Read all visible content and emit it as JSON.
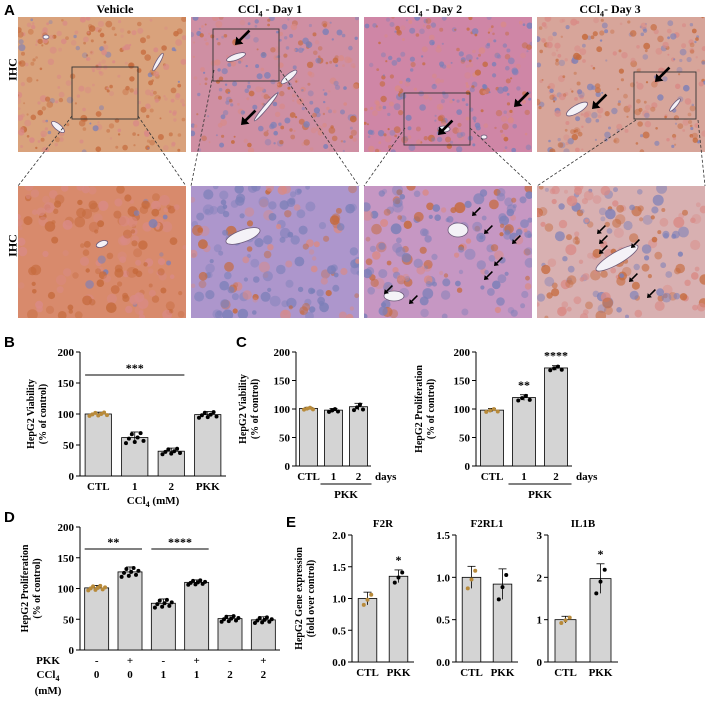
{
  "panels": {
    "A": "A",
    "B": "B",
    "C": "C",
    "D": "D",
    "E": "E"
  },
  "row_label": "IHC",
  "columns": [
    {
      "prefix": "CCl",
      "sub": "",
      "suffix": "Vehicle"
    },
    {
      "prefix": "CCl",
      "sub": "4",
      "suffix": " - Day 1"
    },
    {
      "prefix": "CCl",
      "sub": "4",
      "suffix": " - Day 2"
    },
    {
      "prefix": "CCl",
      "sub": "4",
      "suffix": "- Day 3"
    }
  ],
  "col_titles": [
    "Vehicle",
    "CCl",
    "CCl",
    "CCl"
  ],
  "col_subs": [
    "",
    "4",
    "4",
    "4"
  ],
  "col_suffixes": [
    "",
    " - Day 1",
    " - Day 2",
    "- Day 3"
  ],
  "tissue_colors": {
    "pink": "#d98a86",
    "blue": "#7b7fb8",
    "brown": "#c56a3c"
  },
  "chart_data": [
    {
      "id": "B",
      "type": "bar",
      "ylabel": "HepG2 Viability",
      "ylabel2": "(% of control)",
      "categories": [
        "CTL",
        "1",
        "2",
        "PKK"
      ],
      "values": [
        100,
        62,
        40,
        99
      ],
      "errors": [
        3,
        9,
        5,
        5
      ],
      "ylim": [
        0,
        200
      ],
      "yticks": [
        "0",
        "50",
        "100",
        "150",
        "200"
      ],
      "xlabel": "CCl",
      "xlabel_sub": "4",
      "xlabel_suffix": " (mM)",
      "sig": [
        {
          "label": "***",
          "from": 0,
          "to": 2
        }
      ]
    },
    {
      "id": "C1",
      "type": "bar",
      "ylabel": "HepG2 Viability",
      "ylabel2": "(% of control)",
      "categories": [
        "CTL",
        "1",
        "2"
      ],
      "values": [
        101,
        98,
        104
      ],
      "errors": [
        2,
        3,
        6
      ],
      "ylim": [
        0,
        200
      ],
      "yticks": [
        "0",
        "50",
        "100",
        "150",
        "200"
      ],
      "group_label": "PKK",
      "unit_label": "days"
    },
    {
      "id": "C2",
      "type": "bar",
      "ylabel": "HepG2 Proliferation",
      "ylabel2": "(% of control)",
      "categories": [
        "CTL",
        "1",
        "2"
      ],
      "values": [
        98,
        120,
        172
      ],
      "errors": [
        3,
        5,
        4
      ],
      "ylim": [
        0,
        200
      ],
      "yticks": [
        "0",
        "50",
        "100",
        "150",
        "200"
      ],
      "group_label": "PKK",
      "unit_label": "days",
      "stars": [
        "",
        "**",
        "****"
      ]
    },
    {
      "id": "D",
      "type": "bar",
      "ylabel": "HepG2 Proliferation",
      "ylabel2": "(% of control)",
      "pkk_label": "PKK",
      "ccl_label": "CCl",
      "ccl_sub": "4",
      "ccl_unit": "(mM)",
      "pkk": [
        "-",
        "+",
        "-",
        "+",
        "-",
        "+"
      ],
      "ccl": [
        "0",
        "0",
        "1",
        "1",
        "2",
        "2"
      ],
      "values": [
        101,
        127,
        76,
        110,
        51,
        49
      ],
      "errors": [
        4,
        8,
        7,
        4,
        5,
        5
      ],
      "ylim": [
        0,
        200
      ],
      "yticks": [
        "0",
        "50",
        "100",
        "150",
        "200"
      ],
      "sig": [
        {
          "label": "**",
          "from": 0,
          "to": 1
        },
        {
          "label": "****",
          "from": 2,
          "to": 3
        }
      ]
    },
    {
      "id": "E1",
      "type": "bar",
      "title": "F2R",
      "ylabel": "HepG2 Gene expression",
      "ylabel2": "(fold over control)",
      "categories": [
        "CTL",
        "PKK"
      ],
      "values": [
        1.0,
        1.35
      ],
      "errors": [
        0.1,
        0.1
      ],
      "ylim": [
        0,
        2.0
      ],
      "yticks": [
        "0.0",
        "0.5",
        "1.0",
        "1.5",
        "2.0"
      ],
      "stars": [
        "",
        "*"
      ]
    },
    {
      "id": "E2",
      "type": "bar",
      "title": "F2RL1",
      "categories": [
        "CTL",
        "PKK"
      ],
      "values": [
        1.0,
        0.92
      ],
      "errors": [
        0.13,
        0.18
      ],
      "ylim": [
        0,
        1.5
      ],
      "yticks": [
        "0.0",
        "0.5",
        "1.0",
        "1.5"
      ],
      "stars": [
        "",
        ""
      ]
    },
    {
      "id": "E3",
      "type": "bar",
      "title": "IL1B",
      "categories": [
        "CTL",
        "PKK"
      ],
      "values": [
        1.0,
        1.97
      ],
      "errors": [
        0.08,
        0.35
      ],
      "ylim": [
        0,
        3
      ],
      "yticks": [
        "0",
        "1",
        "2",
        "3"
      ],
      "stars": [
        "",
        "*"
      ]
    }
  ]
}
